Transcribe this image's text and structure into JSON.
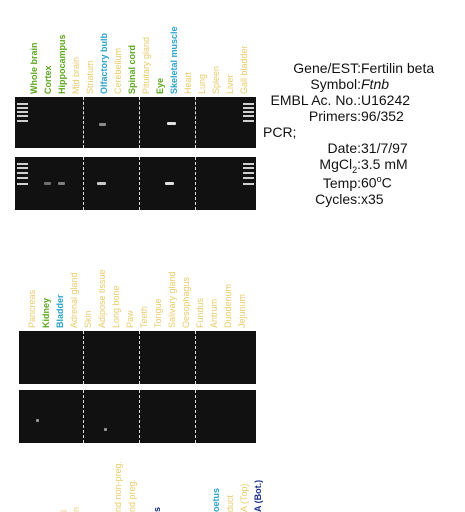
{
  "colors": {
    "green": "#5ea71f",
    "yellow": "#e8cc6a",
    "blue": "#2ba3c9",
    "navy": "#1a2f86",
    "gel": "#111111",
    "band": "#d9d9d9"
  },
  "panel1": {
    "lanes": [
      {
        "label": "Whole brain",
        "color": "green",
        "bold": true
      },
      {
        "label": "Cortex",
        "color": "green",
        "bold": true
      },
      {
        "label": "Hippocampus",
        "color": "green",
        "bold": true
      },
      {
        "label": "Mid brain",
        "color": "yellow",
        "bold": false
      },
      {
        "label": "Striatum",
        "color": "yellow",
        "bold": false
      },
      {
        "label": "Olfactory bulb",
        "color": "blue",
        "bold": true
      },
      {
        "label": "Cerebellum",
        "color": "yellow",
        "bold": false
      },
      {
        "label": "Spinal cord",
        "color": "green",
        "bold": true
      },
      {
        "label": "Pituitary gland",
        "color": "yellow",
        "bold": false
      },
      {
        "label": "Eye",
        "color": "green",
        "bold": true
      },
      {
        "label": "Skeletal muscle",
        "color": "blue",
        "bold": true
      },
      {
        "label": "Heart",
        "color": "yellow",
        "bold": false
      },
      {
        "label": "Lung",
        "color": "yellow",
        "bold": false
      },
      {
        "label": "Spleen",
        "color": "yellow",
        "bold": false
      },
      {
        "label": "Liver",
        "color": "yellow",
        "bold": false
      },
      {
        "label": "Gall bladder",
        "color": "yellow",
        "bold": false
      }
    ]
  },
  "panel2": {
    "lanes": [
      {
        "label": "Pancreas",
        "color": "yellow",
        "bold": false
      },
      {
        "label": "Kidney",
        "color": "green",
        "bold": true
      },
      {
        "label": "Bladder",
        "color": "blue",
        "bold": true
      },
      {
        "label": "Adrenal gland",
        "color": "yellow",
        "bold": false
      },
      {
        "label": "Skin",
        "color": "yellow",
        "bold": false
      },
      {
        "label": "Adipose tissue",
        "color": "yellow",
        "bold": false
      },
      {
        "label": "Long bone",
        "color": "yellow",
        "bold": false
      },
      {
        "label": "Paw",
        "color": "yellow",
        "bold": false
      },
      {
        "label": "Teeth",
        "color": "yellow",
        "bold": false
      },
      {
        "label": "Tongue",
        "color": "yellow",
        "bold": false
      },
      {
        "label": "Salivary gland",
        "color": "yellow",
        "bold": false
      },
      {
        "label": "Oesophagus",
        "color": "yellow",
        "bold": false
      },
      {
        "label": "Fundus",
        "color": "yellow",
        "bold": false
      },
      {
        "label": "Antrum",
        "color": "yellow",
        "bold": false
      },
      {
        "label": "Duodenum",
        "color": "yellow",
        "bold": false
      },
      {
        "label": "Jejunum",
        "color": "yellow",
        "bold": false
      }
    ]
  },
  "panel3": {
    "labels": [
      {
        "label": "l",
        "color": "yellow",
        "bold": false
      },
      {
        "label": "n",
        "color": "yellow",
        "bold": false
      },
      {
        "label": "nd non-preg.",
        "color": "yellow",
        "bold": false
      },
      {
        "label": "nd preg.",
        "color": "yellow",
        "bold": false
      },
      {
        "label": "s",
        "color": "navy",
        "bold": true
      },
      {
        "label": "oetus",
        "color": "blue",
        "bold": true
      },
      {
        "label": "duct",
        "color": "yellow",
        "bold": false
      },
      {
        "label": "A (Top)",
        "color": "yellow",
        "bold": false
      },
      {
        "label": "A (Bot.)",
        "color": "navy",
        "bold": true
      }
    ]
  },
  "info": {
    "gene_key": "Gene/EST:",
    "gene_val": "Fertilin beta",
    "symbol_key": "Symbol:",
    "symbol_val": "Ftnb",
    "embl_key": "EMBL Ac. No.:",
    "embl_val": "U16242",
    "primers_key": "Primers:",
    "primers_val": "96/352",
    "pcr_label": "PCR;",
    "date_key": "Date:",
    "date_val": "31/7/97",
    "mgcl_key_pre": "MgCl",
    "mgcl_key_sub": "2",
    "mgcl_key_post": ":",
    "mgcl_val": "3.5 mM",
    "temp_key": "Temp:",
    "temp_val_pre": "60",
    "temp_val_sup": "o",
    "temp_val_post": "C",
    "cycles_key": "Cycles:",
    "cycles_val": "x35"
  }
}
